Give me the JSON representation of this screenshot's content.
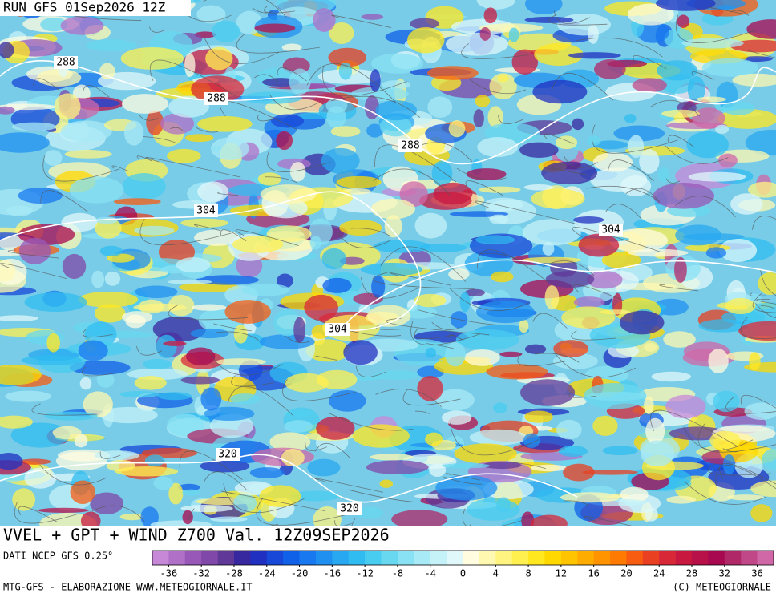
{
  "header": {
    "run": "RUN GFS 01Sep2026 12Z"
  },
  "map": {
    "contour_labels": [
      288,
      288,
      288,
      304,
      304,
      304,
      320,
      320
    ]
  },
  "footer": {
    "title": "VVEL + GPT + WIND Z700 Val. 12Z09SEP2026",
    "source": "DATI NCEP GFS 0.25°",
    "credit": "MTG-GFS - ELABORAZIONE WWW.METEOGIORNALE.IT",
    "copyright": "(C) METEOGIORNALE"
  },
  "colorbar": {
    "lim": [
      -38,
      38
    ],
    "ticks": [
      -36,
      -32,
      -28,
      -24,
      -20,
      -16,
      -12,
      -8,
      -4,
      0,
      4,
      8,
      12,
      16,
      20,
      24,
      28,
      32,
      36
    ],
    "colors": [
      "#c888d8",
      "#b070c8",
      "#9858b8",
      "#8048a8",
      "#603898",
      "#3828a0",
      "#2030c0",
      "#1848d8",
      "#1060e8",
      "#1878f0",
      "#2090f0",
      "#28a8f0",
      "#30bcf0",
      "#48ccf0",
      "#68d8f0",
      "#88e2f4",
      "#a8eaf6",
      "#c4f2f8",
      "#e0f8fa",
      "#fffce0",
      "#fff8b0",
      "#fff480",
      "#fff050",
      "#ffe820",
      "#ffd800",
      "#ffc400",
      "#ffac00",
      "#ff9400",
      "#ff7a00",
      "#f85c10",
      "#e84020",
      "#d82838",
      "#c81840",
      "#b81048",
      "#a80850",
      "#b02868",
      "#c04888",
      "#d068a8"
    ]
  }
}
